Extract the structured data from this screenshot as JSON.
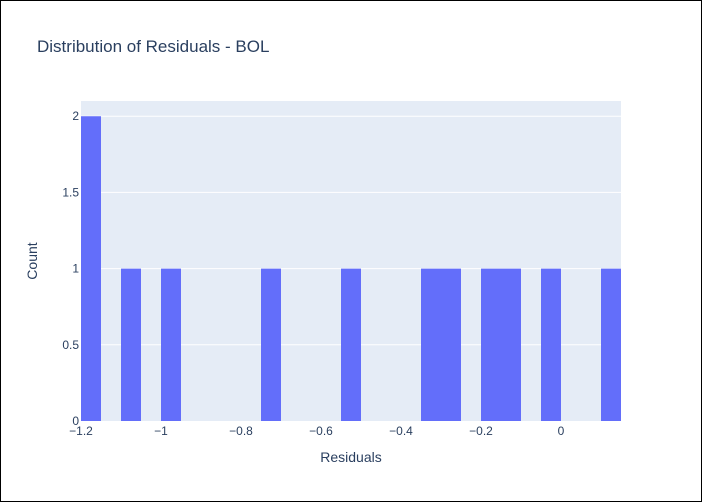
{
  "chart_data": {
    "type": "histogram",
    "title": "Distribution of Residuals - BOL",
    "xlabel": "Residuals",
    "ylabel": "Count",
    "xlim": [
      -1.2,
      0.15
    ],
    "ylim": [
      0,
      2.1
    ],
    "bin_width": 0.05,
    "bins": [
      {
        "x0": -1.2,
        "x1": -1.15,
        "count": 2
      },
      {
        "x0": -1.1,
        "x1": -1.05,
        "count": 1
      },
      {
        "x0": -1.0,
        "x1": -0.95,
        "count": 1
      },
      {
        "x0": -0.75,
        "x1": -0.7,
        "count": 1
      },
      {
        "x0": -0.55,
        "x1": -0.5,
        "count": 1
      },
      {
        "x0": -0.35,
        "x1": -0.3,
        "count": 1
      },
      {
        "x0": -0.3,
        "x1": -0.25,
        "count": 1
      },
      {
        "x0": -0.2,
        "x1": -0.15,
        "count": 1
      },
      {
        "x0": -0.15,
        "x1": -0.1,
        "count": 1
      },
      {
        "x0": -0.05,
        "x1": 0.0,
        "count": 1
      },
      {
        "x0": 0.1,
        "x1": 0.15,
        "count": 1
      }
    ],
    "x_ticks": [
      {
        "value": -1.2,
        "label": "−1.2"
      },
      {
        "value": -1.0,
        "label": "−1"
      },
      {
        "value": -0.8,
        "label": "−0.8"
      },
      {
        "value": -0.6,
        "label": "−0.6"
      },
      {
        "value": -0.4,
        "label": "−0.4"
      },
      {
        "value": -0.2,
        "label": "−0.2"
      },
      {
        "value": 0.0,
        "label": "0"
      }
    ],
    "y_ticks": [
      {
        "value": 0,
        "label": "0"
      },
      {
        "value": 0.5,
        "label": "0.5"
      },
      {
        "value": 1,
        "label": "1"
      },
      {
        "value": 1.5,
        "label": "1.5"
      },
      {
        "value": 2,
        "label": "2"
      }
    ],
    "grid": true,
    "colors": {
      "bar": "#636efa",
      "plot_background": "#e5ecf6",
      "grid": "#ffffff",
      "text": "#2a3f5f"
    }
  }
}
